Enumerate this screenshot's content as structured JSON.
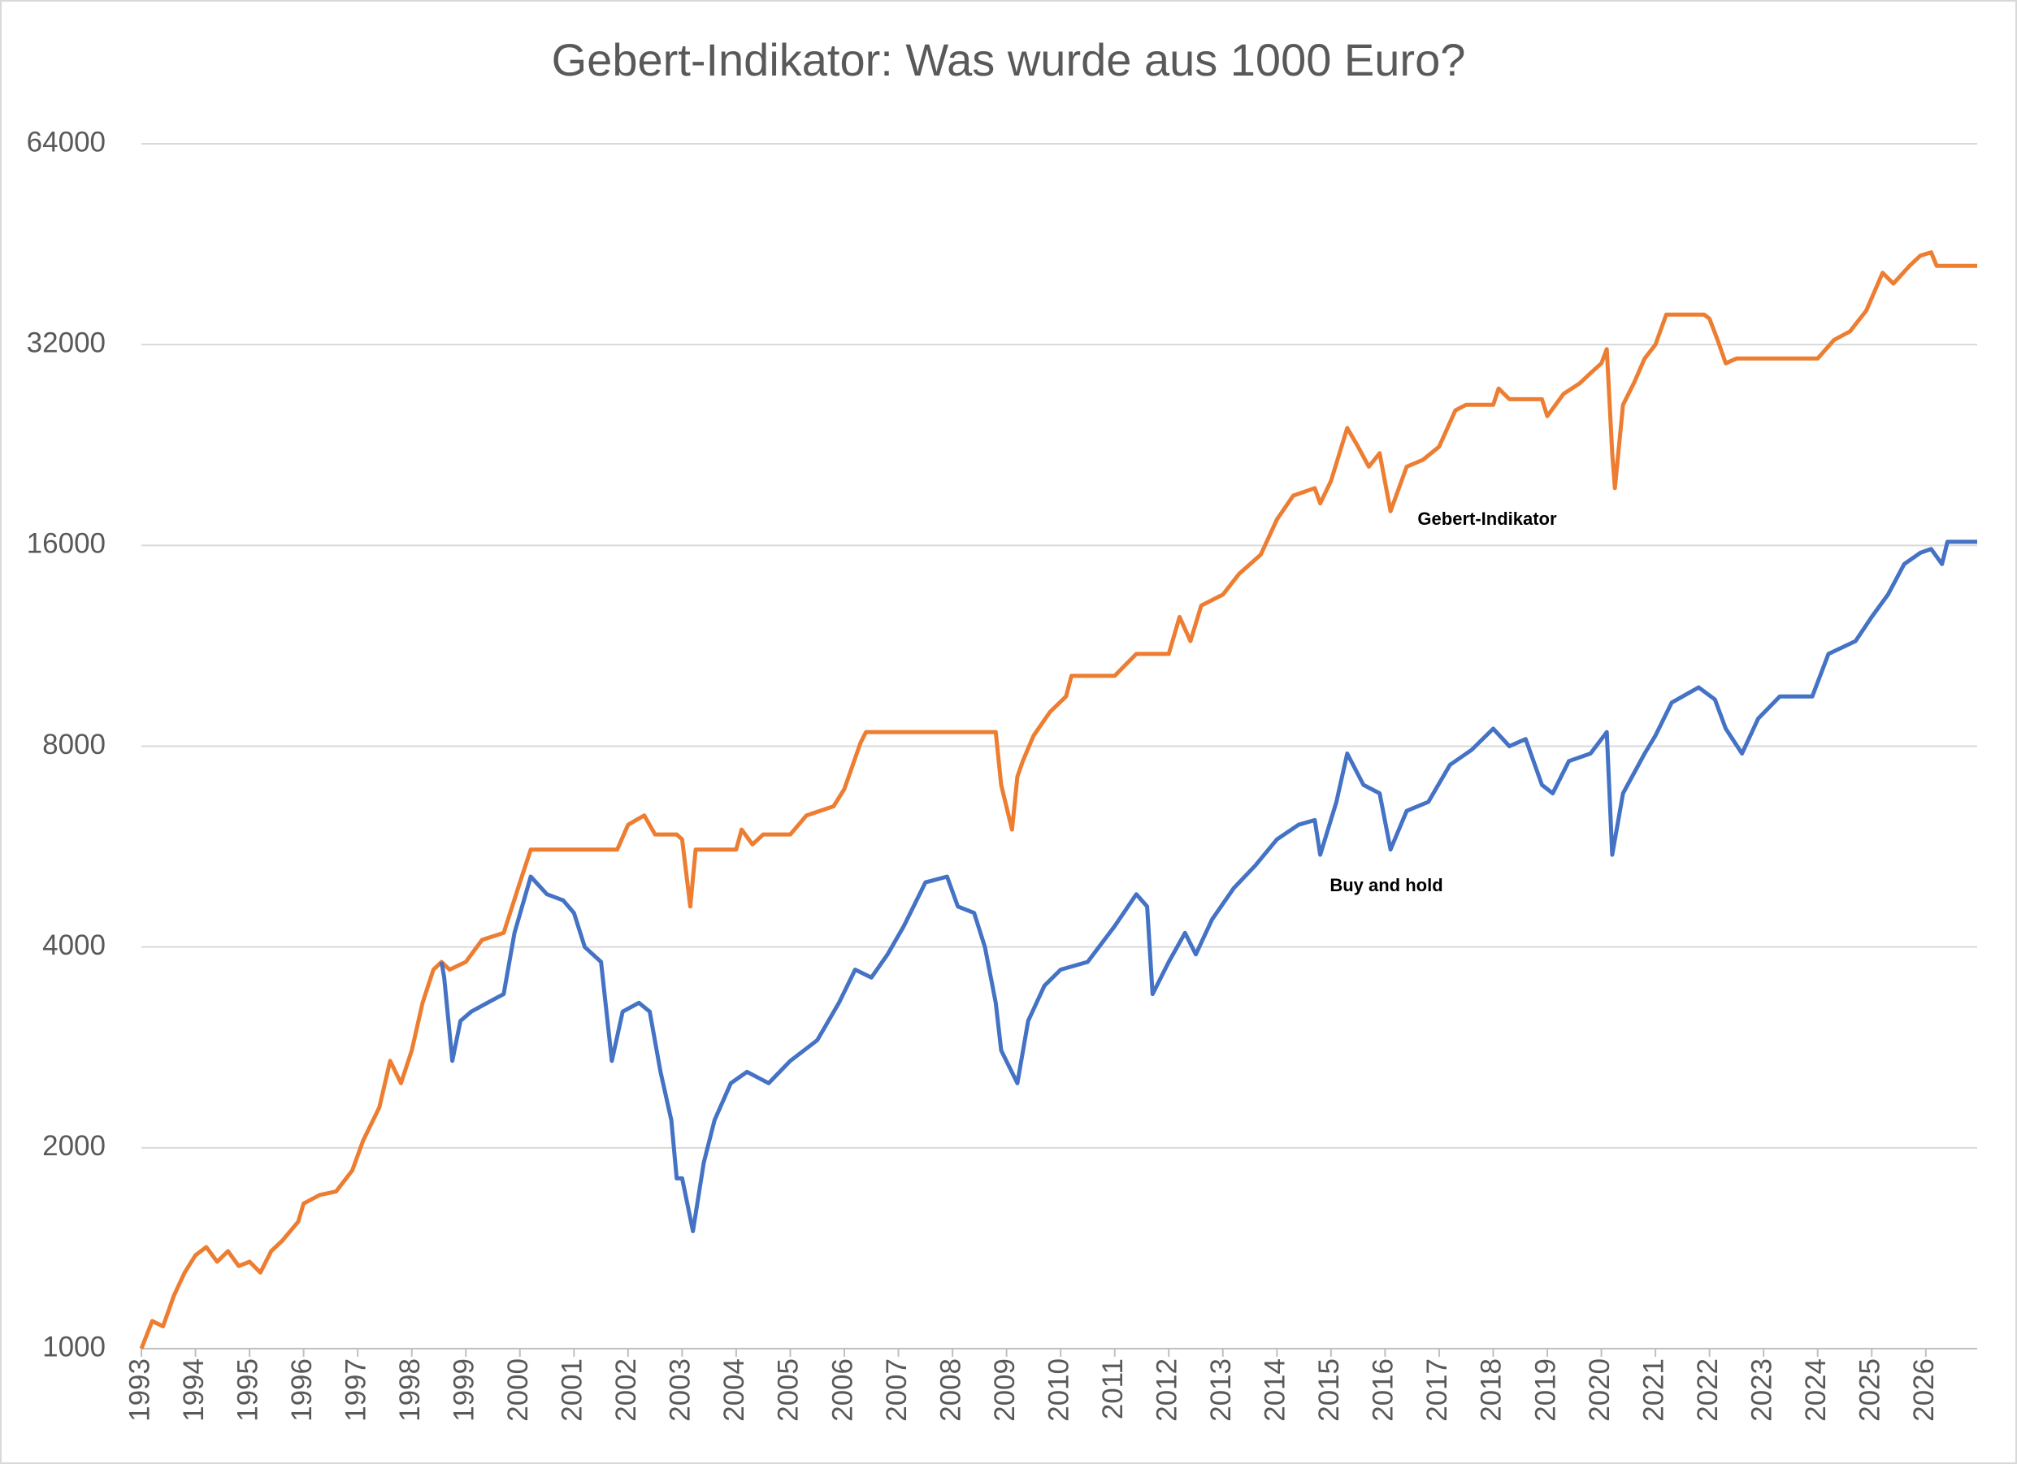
{
  "chart_data": {
    "type": "line",
    "title": "Gebert-Indikator: Was wurde aus 1000 Euro?",
    "log_scale": true,
    "grid": true,
    "xlim": [
      1993,
      2026.95
    ],
    "xticks": [
      1993,
      1994,
      1995,
      1996,
      1997,
      1998,
      1999,
      2000,
      2001,
      2002,
      2003,
      2004,
      2005,
      2006,
      2007,
      2008,
      2009,
      2010,
      2011,
      2012,
      2013,
      2014,
      2015,
      2016,
      2017,
      2018,
      2019,
      2020,
      2021,
      2022,
      2023,
      2024,
      2025,
      2026
    ],
    "ylim": [
      1000,
      64000
    ],
    "yticks": [
      1000,
      2000,
      4000,
      8000,
      16000,
      32000,
      64000
    ],
    "series": [
      {
        "name": "Gebert-Indikator",
        "color": "#ed7d31",
        "x": [
          1993.0,
          1993.2,
          1993.4,
          1993.6,
          1993.8,
          1994.0,
          1994.2,
          1994.4,
          1994.6,
          1994.8,
          1995.0,
          1995.2,
          1995.4,
          1995.6,
          1995.9,
          1996.0,
          1996.3,
          1996.6,
          1996.9,
          1997.1,
          1997.4,
          1997.6,
          1997.8,
          1998.0,
          1998.2,
          1998.4,
          1998.55,
          1998.7,
          1999.0,
          1999.3,
          1999.7,
          2000.0,
          2000.2,
          2001.8,
          2002.0,
          2002.3,
          2002.5,
          2002.9,
          2003.0,
          2003.15,
          2003.25,
          2004.0,
          2004.1,
          2004.3,
          2004.5,
          2005.0,
          2005.3,
          2005.8,
          2006.0,
          2006.3,
          2006.4,
          2008.8,
          2008.9,
          2009.1,
          2009.2,
          2009.3,
          2009.5,
          2009.8,
          2010.1,
          2010.2,
          2011.0,
          2011.2,
          2011.4,
          2012.0,
          2012.2,
          2012.4,
          2012.6,
          2013.0,
          2013.3,
          2013.7,
          2014.0,
          2014.3,
          2014.7,
          2014.8,
          2015.0,
          2015.3,
          2015.5,
          2015.7,
          2015.9,
          2016.1,
          2016.4,
          2016.7,
          2017.0,
          2017.3,
          2017.5,
          2018.0,
          2018.1,
          2018.3,
          2018.9,
          2019.0,
          2019.3,
          2019.6,
          2019.8,
          2020.0,
          2020.1,
          2020.2,
          2020.25,
          2020.4,
          2020.6,
          2020.8,
          2021.0,
          2021.2,
          2021.9,
          2022.0,
          2022.15,
          2022.3,
          2022.5,
          2024.0,
          2024.3,
          2024.6,
          2024.9,
          2025.2,
          2025.4,
          2025.7,
          2025.9,
          2026.1,
          2026.2,
          2026.3,
          2026.95
        ],
        "values": [
          1000,
          1100,
          1080,
          1200,
          1300,
          1380,
          1420,
          1350,
          1400,
          1330,
          1350,
          1300,
          1400,
          1450,
          1550,
          1650,
          1700,
          1720,
          1850,
          2050,
          2300,
          2700,
          2500,
          2800,
          3300,
          3700,
          3800,
          3700,
          3800,
          4100,
          4200,
          5000,
          5600,
          5600,
          6100,
          6300,
          5900,
          5900,
          5800,
          4600,
          5600,
          5600,
          6000,
          5700,
          5900,
          5900,
          6300,
          6500,
          6900,
          8100,
          8400,
          8400,
          7000,
          6000,
          7200,
          7600,
          8300,
          9000,
          9500,
          10200,
          10200,
          10600,
          11000,
          11000,
          12500,
          11500,
          13000,
          13500,
          14500,
          15500,
          17500,
          19000,
          19500,
          18500,
          20000,
          24000,
          22500,
          21000,
          22000,
          18000,
          21000,
          21500,
          22500,
          25500,
          26000,
          26000,
          27500,
          26500,
          26500,
          25000,
          27000,
          28000,
          29000,
          30000,
          31500,
          22000,
          19500,
          26000,
          28000,
          30500,
          32000,
          35500,
          35500,
          35000,
          32500,
          30000,
          30500,
          30500,
          32500,
          33500,
          36000,
          41000,
          39500,
          42000,
          43500,
          44000,
          42000,
          42000,
          42000
        ]
      },
      {
        "name": "Buy and hold",
        "color": "#4472c4",
        "x": [
          1998.55,
          1998.6,
          1998.75,
          1998.9,
          1999.1,
          1999.4,
          1999.7,
          1999.9,
          2000.2,
          2000.5,
          2000.8,
          2001.0,
          2001.2,
          2001.5,
          2001.7,
          2001.9,
          2002.2,
          2002.4,
          2002.6,
          2002.8,
          2002.9,
          2003.0,
          2003.2,
          2003.4,
          2003.6,
          2003.9,
          2004.2,
          2004.6,
          2005.0,
          2005.5,
          2005.9,
          2006.2,
          2006.5,
          2006.8,
          2007.1,
          2007.5,
          2007.9,
          2008.1,
          2008.4,
          2008.6,
          2008.8,
          2008.9,
          2009.2,
          2009.4,
          2009.7,
          2010.0,
          2010.5,
          2011.0,
          2011.4,
          2011.6,
          2011.7,
          2012.0,
          2012.3,
          2012.5,
          2012.8,
          2013.2,
          2013.6,
          2014.0,
          2014.4,
          2014.7,
          2014.8,
          2015.1,
          2015.3,
          2015.6,
          2015.9,
          2016.1,
          2016.4,
          2016.8,
          2017.2,
          2017.6,
          2018.0,
          2018.3,
          2018.6,
          2018.9,
          2019.1,
          2019.4,
          2019.8,
          2020.1,
          2020.2,
          2020.4,
          2020.8,
          2021.0,
          2021.3,
          2021.8,
          2022.1,
          2022.3,
          2022.6,
          2022.9,
          2023.3,
          2023.6,
          2023.9,
          2024.2,
          2024.7,
          2025.0,
          2025.3,
          2025.6,
          2025.9,
          2026.1,
          2026.3,
          2026.4,
          2026.95
        ],
        "values": [
          3800,
          3600,
          2700,
          3100,
          3200,
          3300,
          3400,
          4200,
          5100,
          4800,
          4700,
          4500,
          4000,
          3800,
          2700,
          3200,
          3300,
          3200,
          2600,
          2200,
          1800,
          1800,
          1500,
          1900,
          2200,
          2500,
          2600,
          2500,
          2700,
          2900,
          3300,
          3700,
          3600,
          3900,
          4300,
          5000,
          5100,
          4600,
          4500,
          4000,
          3300,
          2800,
          2500,
          3100,
          3500,
          3700,
          3800,
          4300,
          4800,
          4600,
          3400,
          3800,
          4200,
          3900,
          4400,
          4900,
          5300,
          5800,
          6100,
          6200,
          5500,
          6600,
          7800,
          7000,
          6800,
          5600,
          6400,
          6600,
          7500,
          7900,
          8500,
          8000,
          8200,
          7000,
          6800,
          7600,
          7800,
          8400,
          5500,
          6800,
          7800,
          8300,
          9300,
          9800,
          9400,
          8500,
          7800,
          8800,
          9500,
          9500,
          9500,
          11000,
          11500,
          12500,
          13500,
          15000,
          15600,
          15800,
          15000,
          16200,
          16200
        ]
      }
    ]
  }
}
